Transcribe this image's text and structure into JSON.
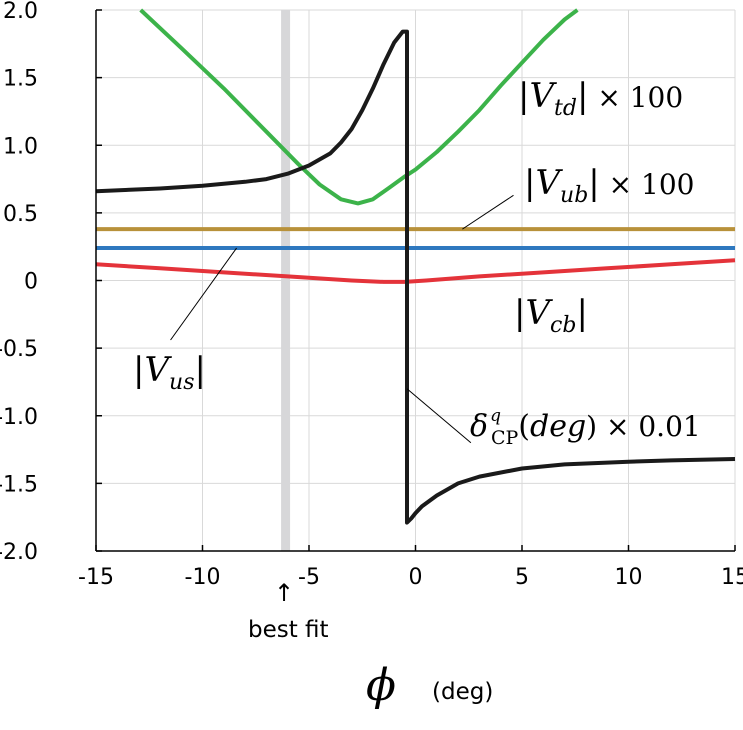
{
  "chart_data": {
    "type": "line",
    "xlabel": "ϕ",
    "xlabel_unit": "(deg)",
    "xlim": [
      -15,
      15
    ],
    "ylim": [
      -2.0,
      2.0
    ],
    "grid": true,
    "x_ticks": [
      -15,
      -10,
      -5,
      0,
      5,
      10,
      15
    ],
    "x_tick_labels": [
      "-15",
      "-10",
      "-5",
      "0",
      "5",
      "10",
      "15"
    ],
    "y_ticks": [
      2.0,
      1.5,
      1.0,
      0.5,
      0,
      -0.5,
      -1.0,
      -1.5,
      -2.0
    ],
    "y_tick_labels": [
      "2.0",
      "1.5",
      "1.0",
      "0.5",
      "0",
      "-0.5",
      "-1.0",
      "-1.5",
      "-2.0"
    ],
    "best_fit": {
      "x": -6.1,
      "label": "best fit",
      "arrow": "↑"
    },
    "series": [
      {
        "name": "|V_td| × 100",
        "color": "#3cb34a",
        "x": [
          -12.9,
          -11,
          -9,
          -7,
          -5.5,
          -4.5,
          -3.5,
          -2.7,
          -2,
          -1.2,
          -0.5,
          0,
          1,
          2,
          3,
          4,
          5,
          6,
          7,
          7.6
        ],
        "y": [
          2.0,
          1.72,
          1.42,
          1.1,
          0.86,
          0.71,
          0.6,
          0.57,
          0.6,
          0.69,
          0.77,
          0.82,
          0.95,
          1.1,
          1.26,
          1.44,
          1.61,
          1.78,
          1.93,
          2.0
        ]
      },
      {
        "name": "|V_ub| × 100",
        "color": "#b8913a",
        "x": [
          -15,
          15
        ],
        "y": [
          0.38,
          0.38
        ]
      },
      {
        "name": "|V_us|",
        "color": "#2e78bf",
        "x": [
          -15,
          15
        ],
        "y": [
          0.24,
          0.24
        ]
      },
      {
        "name": "|V_cb|",
        "color": "#e4333a",
        "x": [
          -15,
          -12,
          -9,
          -6,
          -3,
          -1.5,
          -0.5,
          0.5,
          3,
          6,
          9,
          12,
          15
        ],
        "y": [
          0.12,
          0.09,
          0.06,
          0.03,
          0.0,
          -0.01,
          -0.01,
          0.0,
          0.03,
          0.06,
          0.09,
          0.12,
          0.15
        ]
      },
      {
        "name": "δ^q_CP(deg) × 0.01",
        "color": "#1a1a1a",
        "x": [
          -15,
          -12,
          -10,
          -8,
          -7,
          -6,
          -5,
          -4,
          -3.5,
          -3,
          -2.5,
          -2,
          -1.5,
          -1,
          -0.6,
          -0.4,
          -0.4,
          -0.2,
          0,
          0.3,
          1,
          2,
          3,
          5,
          7,
          10,
          12,
          15
        ],
        "y": [
          0.66,
          0.68,
          0.7,
          0.73,
          0.75,
          0.79,
          0.85,
          0.94,
          1.02,
          1.12,
          1.26,
          1.42,
          1.6,
          1.76,
          1.84,
          1.84,
          -1.79,
          -1.76,
          -1.72,
          -1.67,
          -1.59,
          -1.5,
          -1.45,
          -1.39,
          -1.36,
          -1.34,
          -1.33,
          -1.32
        ]
      }
    ],
    "annotations": [
      {
        "series": "|V_td| × 100",
        "parts": [
          "|",
          "V",
          "td",
          "|",
          " × 100"
        ]
      },
      {
        "series": "|V_ub| × 100",
        "parts": [
          "|",
          "V",
          "ub",
          "|",
          " × 100"
        ]
      },
      {
        "series": "|V_cb|",
        "parts": [
          "|",
          "V",
          "cb",
          "|"
        ]
      },
      {
        "series": "|V_us|",
        "parts": [
          "|",
          "V",
          "us",
          "|"
        ]
      },
      {
        "series": "δ^q_CP(deg) × 0.01",
        "parts": [
          "δ",
          "q",
          "CP",
          "(",
          "deg",
          ") × 0.01"
        ]
      }
    ]
  }
}
